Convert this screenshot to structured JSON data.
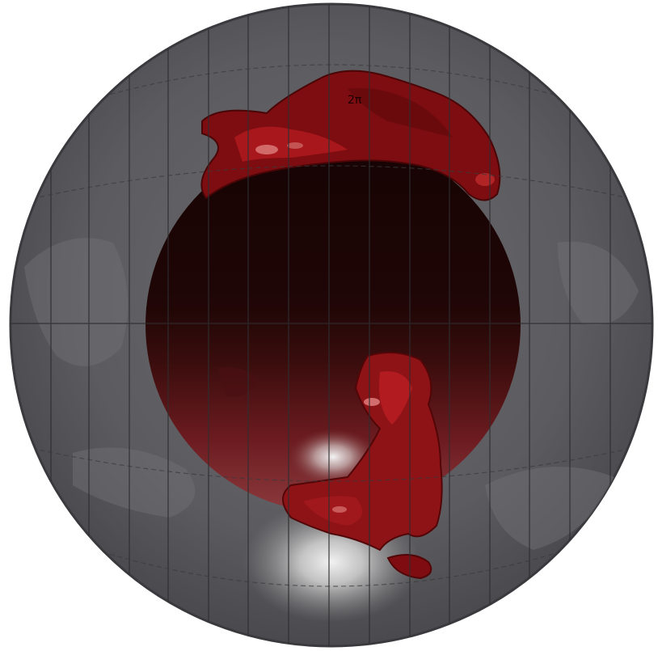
{
  "figure": {
    "label": "2π",
    "description_colors": {
      "outer_sphere": "#5a5a5e",
      "inner_sphere": "#1e0806",
      "surface_red": "#8a0f12",
      "surface_highlight": "#e8e8e8"
    }
  }
}
